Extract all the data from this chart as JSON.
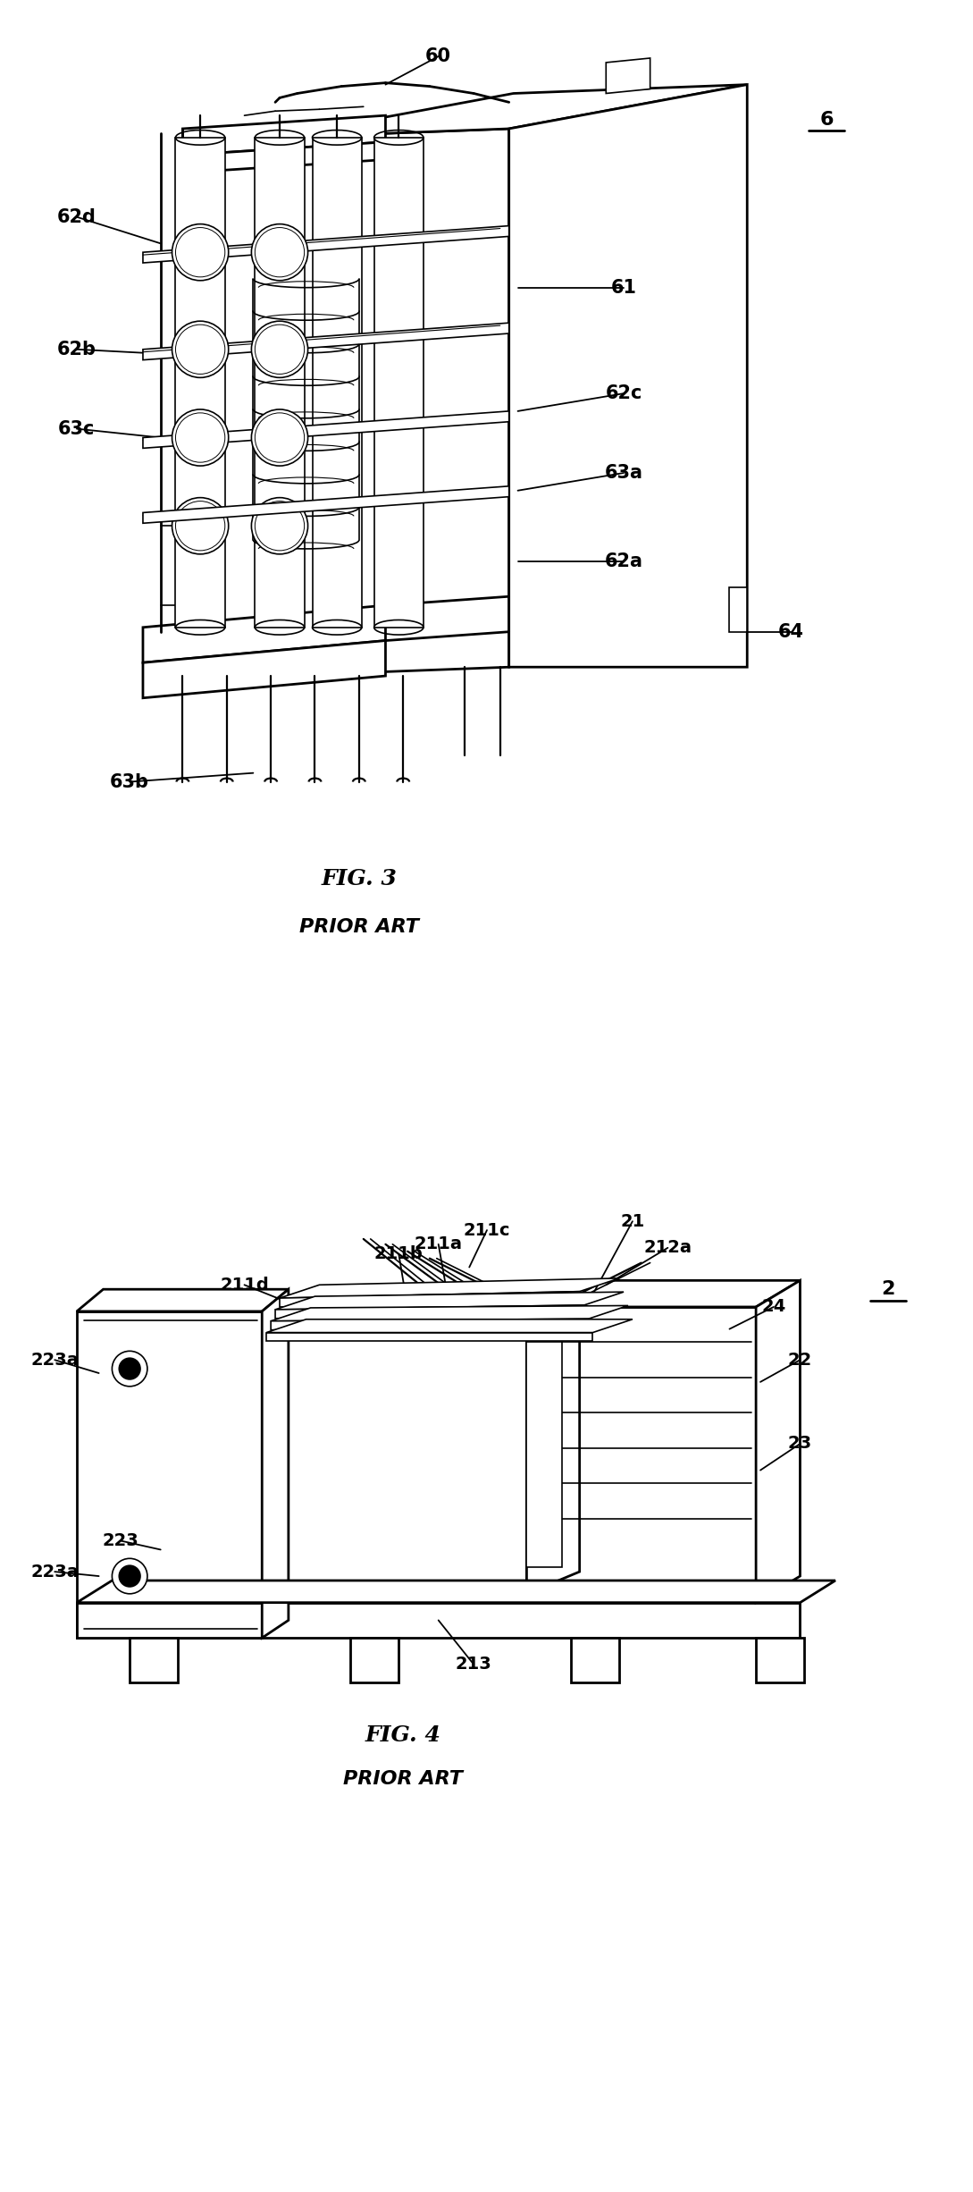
{
  "fig_width": 10.89,
  "fig_height": 24.52,
  "bg_color": "#ffffff",
  "lc": "#000000",
  "fig3_title": "FIG. 3",
  "fig3_subtitle": "PRIOR ART",
  "fig4_title": "FIG. 4",
  "fig4_subtitle": "PRIOR ART",
  "fig3_ref_num": "6",
  "fig4_ref_num": "2",
  "lw_main": 2.0,
  "lw_thin": 1.2,
  "lw_med": 1.6,
  "font_label": 13,
  "font_caption": 18,
  "font_subcat": 16
}
